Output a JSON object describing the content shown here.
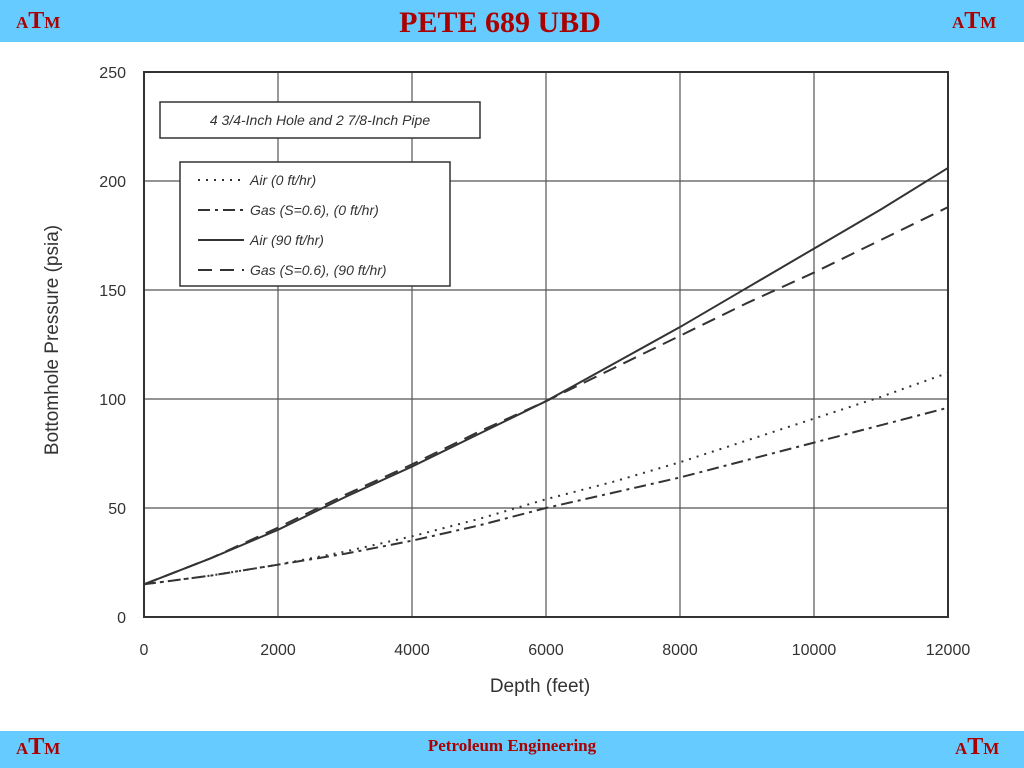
{
  "header": {
    "title": "PETE 689 UBD",
    "logo_left": {
      "a": "A",
      "t": "T",
      "m": "M"
    },
    "logo_right": {
      "a": "A",
      "t": "T",
      "m": "M"
    }
  },
  "footer": {
    "text": "Petroleum Engineering",
    "logo_left": {
      "a": "A",
      "t": "T",
      "m": "M"
    },
    "logo_right": {
      "a": "A",
      "t": "T",
      "m": "M"
    }
  },
  "chart_data": {
    "type": "line",
    "title": "4 3/4-Inch Hole and 2 7/8-Inch Pipe",
    "xlabel": "Depth (feet)",
    "ylabel": "Bottomhole Pressure (psia)",
    "xlim": [
      0,
      12000
    ],
    "ylim": [
      0,
      250
    ],
    "xticks": [
      0,
      2000,
      4000,
      6000,
      8000,
      10000,
      12000
    ],
    "yticks": [
      0,
      50,
      100,
      150,
      200,
      250
    ],
    "grid": true,
    "legend_position": "top-left",
    "series": [
      {
        "name": "Air (0 ft/hr)",
        "style": "dotted",
        "x": [
          0,
          1000,
          2000,
          3000,
          4000,
          5000,
          6000,
          7000,
          8000,
          9000,
          10000,
          11000,
          12000
        ],
        "y": [
          15,
          19,
          24,
          30,
          37,
          45,
          54,
          62,
          71,
          81,
          91,
          101,
          112
        ]
      },
      {
        "name": "Gas (S=0.6), (0 ft/hr)",
        "style": "dash-dot",
        "x": [
          0,
          1000,
          2000,
          3000,
          4000,
          5000,
          6000,
          7000,
          8000,
          9000,
          10000,
          11000,
          12000
        ],
        "y": [
          15,
          19,
          24,
          29,
          35,
          42,
          50,
          57,
          64,
          72,
          80,
          88,
          96
        ]
      },
      {
        "name": "Air (90 ft/hr)",
        "style": "solid",
        "x": [
          0,
          1000,
          2000,
          3000,
          4000,
          5000,
          6000,
          7000,
          8000,
          9000,
          10000,
          11000,
          12000
        ],
        "y": [
          15,
          27,
          40,
          55,
          69,
          84,
          99,
          116,
          133,
          151,
          169,
          187,
          206
        ]
      },
      {
        "name": "Gas (S=0.6), (90 ft/hr)",
        "style": "dashed",
        "x": [
          0,
          1000,
          2000,
          3000,
          4000,
          5000,
          6000,
          7000,
          8000,
          9000,
          10000,
          11000,
          12000
        ],
        "y": [
          15,
          27,
          41,
          56,
          70,
          85,
          99,
          114,
          129,
          144,
          158,
          173,
          188
        ]
      }
    ]
  }
}
